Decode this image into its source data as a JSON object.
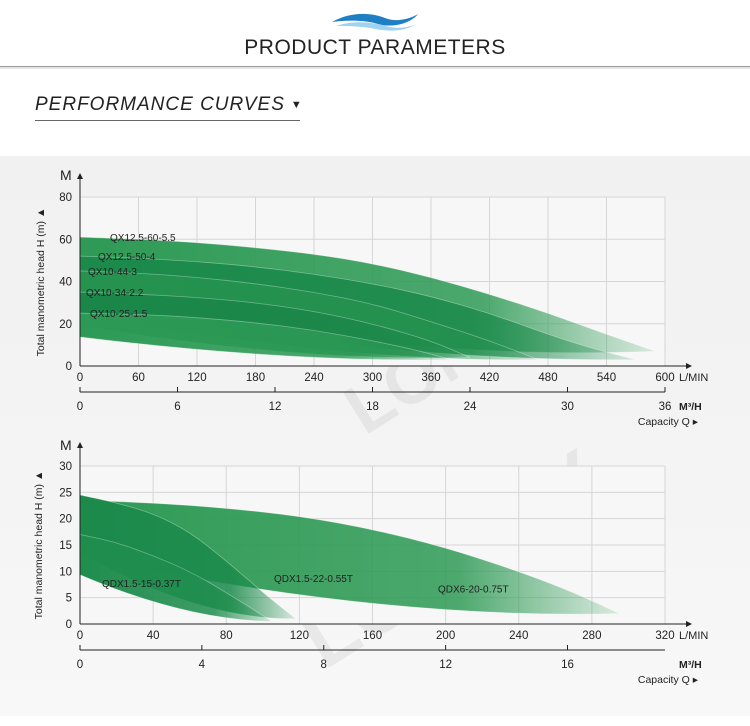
{
  "header": {
    "title": "PRODUCT PARAMETERS",
    "wave_colors": [
      "#49a9e0",
      "#1f7fc4",
      "#9fd3f2"
    ]
  },
  "section": {
    "title": "PERFORMANCE CURVES",
    "marker": "▼"
  },
  "chart_data": [
    {
      "type": "area",
      "y_unit": "M",
      "ylabel": "Total manometric head H (m)",
      "ylim": [
        0,
        80
      ],
      "yticks": [
        0,
        20,
        40,
        60,
        80
      ],
      "x_primary": {
        "unit": "L/MIN",
        "ticks": [
          0,
          60,
          120,
          180,
          240,
          300,
          360,
          420,
          480,
          540,
          600
        ]
      },
      "x_secondary": {
        "unit": "M³/H",
        "ticks": [
          0,
          6,
          12,
          18,
          24,
          30,
          36
        ]
      },
      "capacity_label": "Capacity Q",
      "grid": true,
      "series": [
        {
          "name": "QX12.5-60-5.5",
          "x": [
            0,
            60,
            120,
            180,
            240,
            300,
            360,
            420,
            480,
            540,
            590
          ],
          "y": [
            61,
            60,
            58.5,
            56,
            53,
            48.5,
            42,
            34,
            25,
            15,
            7
          ],
          "color": "#2e9a55"
        },
        {
          "name": "QX12.5-50-4",
          "x": [
            0,
            60,
            120,
            180,
            240,
            300,
            360,
            420,
            480,
            520,
            570
          ],
          "y": [
            52,
            51,
            49.5,
            47,
            43.5,
            39,
            33,
            25,
            15,
            9,
            3
          ],
          "color": "#1b8a4b"
        },
        {
          "name": "QX10-44-3",
          "x": [
            0,
            60,
            120,
            180,
            240,
            300,
            360,
            420,
            470
          ],
          "y": [
            45,
            44,
            42,
            39,
            35,
            29.5,
            21,
            12,
            3
          ],
          "color": "#25924f"
        },
        {
          "name": "QX10-34-2.2",
          "x": [
            0,
            60,
            120,
            180,
            240,
            300,
            360,
            400
          ],
          "y": [
            35,
            34,
            32.5,
            30,
            26,
            20,
            12,
            4
          ],
          "color": "#1a8749"
        },
        {
          "name": "QX10-25-1.5",
          "x": [
            0,
            60,
            120,
            180,
            240,
            300,
            350,
            380
          ],
          "y": [
            25,
            24.5,
            23,
            20.5,
            17,
            12,
            7,
            3
          ],
          "color": "#2c9a55"
        }
      ]
    },
    {
      "type": "area",
      "y_unit": "M",
      "ylabel": "Total manometric head H (m)",
      "ylim": [
        0,
        30
      ],
      "yticks": [
        0,
        5,
        10,
        15,
        20,
        25,
        30
      ],
      "x_primary": {
        "unit": "L/MIN",
        "ticks": [
          0,
          40,
          80,
          120,
          160,
          200,
          240,
          280,
          320
        ]
      },
      "x_secondary": {
        "unit": "M³/H",
        "ticks": [
          0,
          4,
          8,
          12,
          16
        ]
      },
      "capacity_label": "Capacity Q",
      "grid": true,
      "series": [
        {
          "name": "QDX6-20-0.75T",
          "x": [
            0,
            40,
            80,
            120,
            160,
            200,
            240,
            270,
            295
          ],
          "y": [
            23.5,
            23,
            22,
            20.5,
            18,
            14.5,
            10,
            6,
            2
          ],
          "color": "#2e9a55"
        },
        {
          "name": "QDX1.5-22-0.55T",
          "x": [
            0,
            20,
            40,
            60,
            80,
            100,
            118
          ],
          "y": [
            24.5,
            23,
            21,
            17.5,
            12,
            6,
            1
          ],
          "color": "#1b8a4b"
        },
        {
          "name": "QDX1.5-15-0.37T",
          "x": [
            0,
            20,
            40,
            60,
            80,
            105
          ],
          "y": [
            17,
            15.5,
            13,
            10,
            6,
            0.5
          ],
          "color": "#1e8d4d"
        }
      ]
    }
  ]
}
